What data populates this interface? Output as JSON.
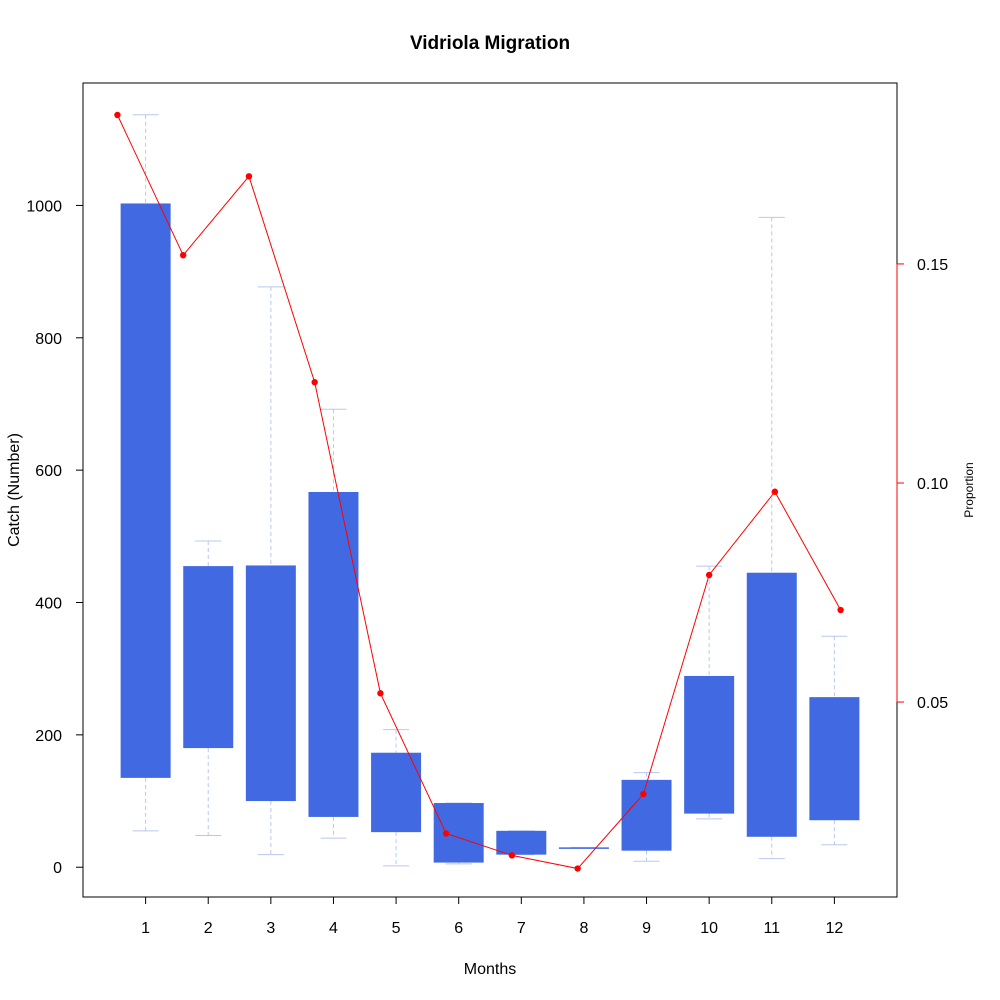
{
  "chart_data": {
    "type": "boxplot",
    "title": "Vidriola Migration",
    "xlabel": "Months",
    "ylabel": "Catch (Number)",
    "y2label": "Proportion",
    "categories": [
      "1",
      "2",
      "3",
      "4",
      "5",
      "6",
      "7",
      "8",
      "9",
      "10",
      "11",
      "12"
    ],
    "ylim": [
      -45,
      1185
    ],
    "yticks": [
      0,
      200,
      400,
      600,
      800,
      1000
    ],
    "y2lim": [
      0.0055,
      0.1913
    ],
    "y2ticks": [
      0.05,
      0.1,
      0.15
    ],
    "y2tick_labels": [
      "0.05",
      "0.10",
      "0.15"
    ],
    "boxes": [
      {
        "month": "1",
        "min": 55,
        "q1": 135,
        "q3": 1003,
        "max": 1137
      },
      {
        "month": "2",
        "min": 48,
        "q1": 180,
        "q3": 455,
        "max": 493
      },
      {
        "month": "3",
        "min": 19,
        "q1": 100,
        "q3": 456,
        "max": 877
      },
      {
        "month": "4",
        "min": 44,
        "q1": 76,
        "q3": 567,
        "max": 692
      },
      {
        "month": "5",
        "min": 2,
        "q1": 53,
        "q3": 173,
        "max": 208
      },
      {
        "month": "6",
        "min": 5,
        "q1": 7,
        "q3": 97,
        "max": 97
      },
      {
        "month": "7",
        "min": 19,
        "q1": 19,
        "q3": 55,
        "max": 55
      },
      {
        "month": "8",
        "min": 29,
        "q1": 29,
        "q3": 30,
        "max": 30
      },
      {
        "month": "9",
        "min": 9,
        "q1": 25,
        "q3": 132,
        "max": 143
      },
      {
        "month": "10",
        "min": 73,
        "q1": 81,
        "q3": 289,
        "max": 455
      },
      {
        "month": "11",
        "min": 13,
        "q1": 46,
        "q3": 445,
        "max": 982
      },
      {
        "month": "12",
        "min": 34,
        "q1": 71,
        "q3": 257,
        "max": 349
      }
    ],
    "proportion_series": {
      "x": [
        0.55,
        1.6,
        2.65,
        3.7,
        4.75,
        5.8,
        6.85,
        7.9,
        8.95,
        10.0,
        11.05,
        12.1
      ],
      "values": [
        0.184,
        0.152,
        0.17,
        0.123,
        0.052,
        0.02,
        0.015,
        0.012,
        0.029,
        0.079,
        0.098,
        0.071
      ]
    },
    "colors": {
      "box_fill": "#4169e1",
      "whisker": "#b8c8f2",
      "line": "#ff0000",
      "axis": "#000000"
    }
  }
}
